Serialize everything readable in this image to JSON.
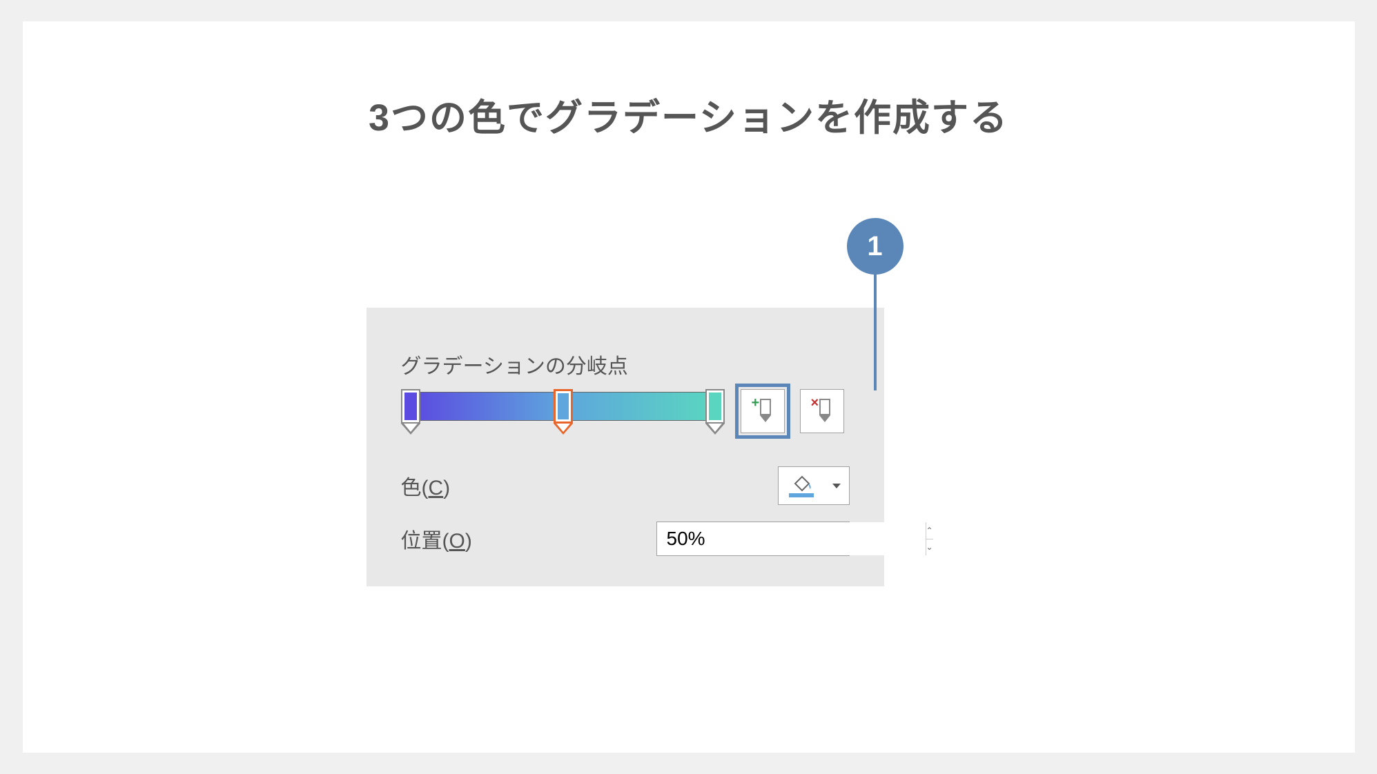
{
  "title": "3つの色でグラデーションを作成する",
  "callout": {
    "number": "1"
  },
  "panel": {
    "gradient_label": "グラデーションの分岐点",
    "stops": [
      {
        "pos_percent": 3,
        "color": "#5b4be0",
        "selected": false
      },
      {
        "pos_percent": 50,
        "color": "#5ea6dd",
        "selected": true
      },
      {
        "pos_percent": 97,
        "color": "#5ad6c0",
        "selected": false
      }
    ],
    "gradient_css": "linear-gradient(to right, #5b4be0, #5ea6dd 50%, #5ad6c0)",
    "add_stop_icon": "add-gradient-stop",
    "remove_stop_icon": "remove-gradient-stop",
    "color_label_prefix": "色(",
    "color_label_key": "C",
    "color_label_suffix": ")",
    "current_color": "#5ea6dd",
    "position_label_prefix": "位置(",
    "position_label_key": "O",
    "position_label_suffix": ")",
    "position_value": "50%"
  },
  "colors": {
    "accent": "#5a86b8",
    "highlight_border": "#5a86b8",
    "selected_stop_border": "#e8662c",
    "panel_bg": "#e8e8e8",
    "canvas_bg": "#ffffff",
    "page_bg": "#f0f0f0"
  }
}
